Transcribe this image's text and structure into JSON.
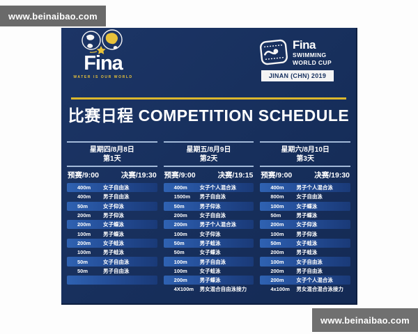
{
  "watermark": {
    "text": "www.beinaibao.com"
  },
  "poster": {
    "fina_logo": {
      "brand": "Fina",
      "tagline": "WATER IS OUR WORLD"
    },
    "worldcup_logo": {
      "brand": "Fina",
      "line1": "SWIMMING",
      "line2": "WORLD CUP",
      "event_badge": "JINAN (CHN) 2019"
    },
    "title": "比赛日程 COMPETITION SCHEDULE",
    "days": [
      {
        "date": "星期四/8月8日",
        "day": "第1天",
        "prelim": "预赛/9:00",
        "final": "决赛/19:30",
        "events": [
          {
            "distance": "400m",
            "event": "女子自由泳"
          },
          {
            "distance": "400m",
            "event": "男子自由泳"
          },
          {
            "distance": "50m",
            "event": "女子仰泳"
          },
          {
            "distance": "200m",
            "event": "男子仰泳"
          },
          {
            "distance": "200m",
            "event": "女子蝶泳"
          },
          {
            "distance": "100m",
            "event": "男子蝶泳"
          },
          {
            "distance": "200m",
            "event": "女子蛙泳"
          },
          {
            "distance": "100m",
            "event": "男子蛙泳"
          },
          {
            "distance": "50m",
            "event": "女子自由泳"
          },
          {
            "distance": "50m",
            "event": "男子自由泳"
          },
          {
            "distance": "",
            "event": ""
          },
          {
            "distance": "",
            "event": ""
          }
        ]
      },
      {
        "date": "星期五/8月9日",
        "day": "第2天",
        "prelim": "预赛/9:00",
        "final": "决赛/19:15",
        "events": [
          {
            "distance": "400m",
            "event": "女子个人混合泳"
          },
          {
            "distance": "1500m",
            "event": "男子自由泳"
          },
          {
            "distance": "50m",
            "event": "男子仰泳"
          },
          {
            "distance": "200m",
            "event": "女子自由泳"
          },
          {
            "distance": "200m",
            "event": "男子个人混合泳"
          },
          {
            "distance": "100m",
            "event": "女子仰泳"
          },
          {
            "distance": "50m",
            "event": "男子蛙泳"
          },
          {
            "distance": "50m",
            "event": "女子蝶泳"
          },
          {
            "distance": "100m",
            "event": "男子自由泳"
          },
          {
            "distance": "100m",
            "event": "女子蛙泳"
          },
          {
            "distance": "200m",
            "event": "男子蝶泳"
          },
          {
            "distance": "4X100m",
            "event": "男女混合自由泳接力"
          }
        ]
      },
      {
        "date": "星期六/8月10日",
        "day": "第3天",
        "prelim": "预赛/9:00",
        "final": "决赛/19:30",
        "events": [
          {
            "distance": "400m",
            "event": "男子个人混合泳"
          },
          {
            "distance": "800m",
            "event": "女子自由泳"
          },
          {
            "distance": "100m",
            "event": "女子蝶泳"
          },
          {
            "distance": "50m",
            "event": "男子蝶泳"
          },
          {
            "distance": "200m",
            "event": "女子仰泳"
          },
          {
            "distance": "100m",
            "event": "男子仰泳"
          },
          {
            "distance": "50m",
            "event": "女子蛙泳"
          },
          {
            "distance": "200m",
            "event": "男子蛙泳"
          },
          {
            "distance": "100m",
            "event": "女子自由泳"
          },
          {
            "distance": "200m",
            "event": "男子自由泳"
          },
          {
            "distance": "200m",
            "event": "女子个人混合泳"
          },
          {
            "distance": "4x100m",
            "event": "男女混合混合泳接力"
          }
        ]
      }
    ]
  },
  "colors": {
    "poster_navy": "#17305c",
    "stripe_blue": "#2f62b2",
    "gold": "#dcb72c",
    "watermark_gray": "#6a6a6a",
    "text_white": "#ffffff"
  }
}
